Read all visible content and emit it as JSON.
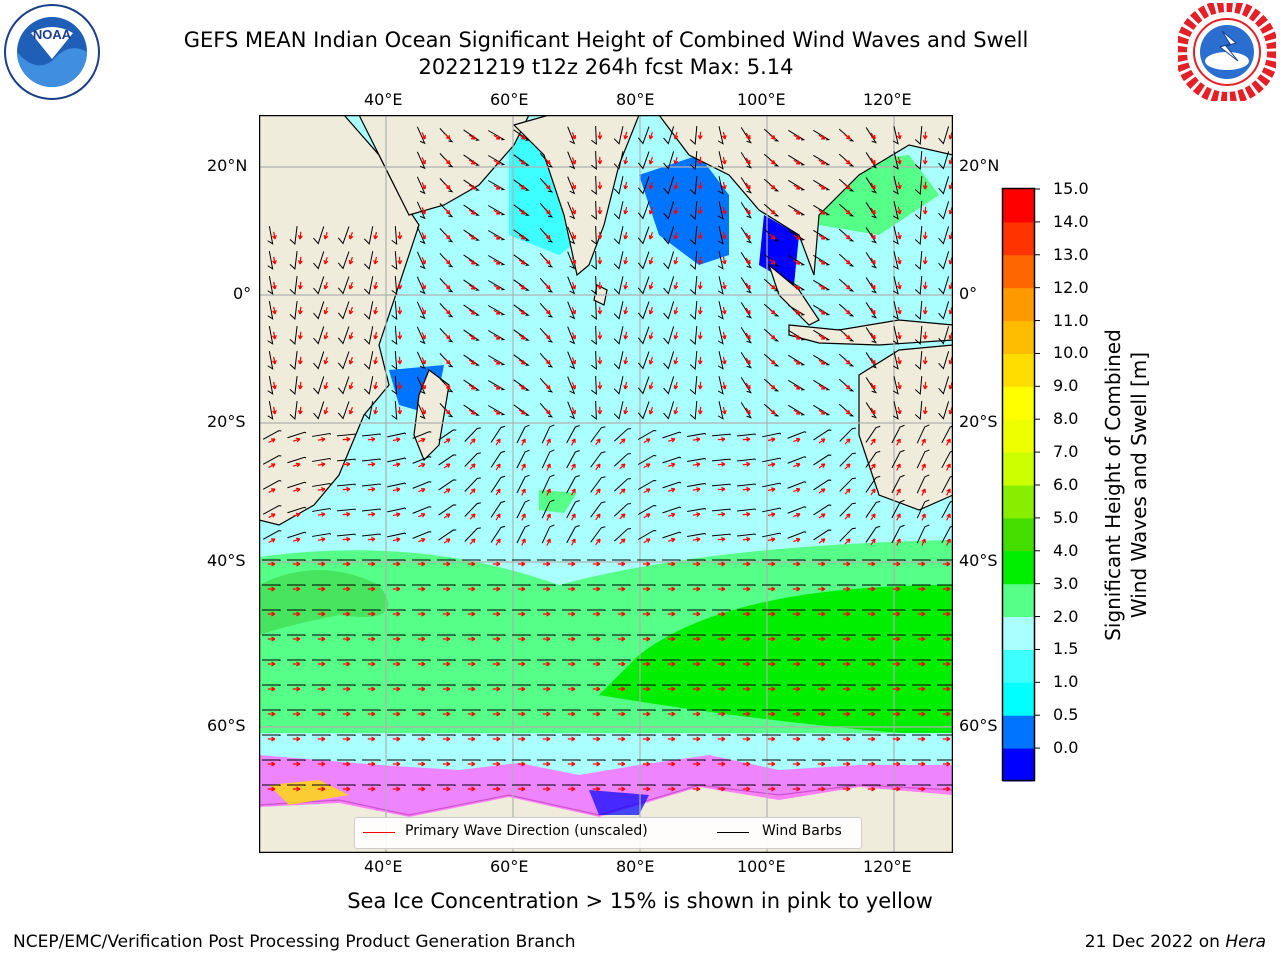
{
  "header": {
    "title_line1": "GEFS MEAN Indian Ocean Significant Height of Combined Wind Waves and Swell",
    "title_line2": "20221219 t12z 264h fcst   Max: 5.14"
  },
  "logos": {
    "noaa": {
      "text": "NOAA",
      "ring_text": "NATIONAL OCEANIC AND ATMOSPHERIC ADMINISTRATION · U.S. DEPARTMENT OF COMMERCE"
    },
    "nws": {
      "ring_text": "NATIONAL WEATHER SERVICE"
    }
  },
  "map": {
    "lon_labels_top": [
      "40°E",
      "60°E",
      "80°E",
      "100°E",
      "120°E"
    ],
    "lon_labels_bottom": [
      "40°E",
      "60°E",
      "80°E",
      "100°E",
      "120°E"
    ],
    "lat_labels_left": [
      "20°N",
      "0°",
      "20°S",
      "40°S",
      "60°S"
    ],
    "lat_labels_right": [
      "20°N",
      "0°",
      "20°S",
      "40°S",
      "60°S"
    ],
    "colors": {
      "land": "#efecdc",
      "grid": "#b0b0b0",
      "wave_arrow": "#ff0000",
      "wind_barb": "#000000"
    }
  },
  "colorbar": {
    "ticks": [
      "15.0",
      "14.0",
      "13.0",
      "12.0",
      "11.0",
      "10.0",
      "9.0",
      "8.0",
      "7.0",
      "6.0",
      "5.0",
      "4.0",
      "3.0",
      "2.0",
      "1.5",
      "1.0",
      "0.5",
      "0.0"
    ],
    "colors_bottom_to_top": [
      "#0000ff",
      "#0073ff",
      "#00ffff",
      "#3dffff",
      "#aaffff",
      "#55ff88",
      "#00ee00",
      "#44dd00",
      "#88ee00",
      "#ccff00",
      "#eeff00",
      "#ffff00",
      "#ffdd00",
      "#ffbb00",
      "#ff9900",
      "#ff6600",
      "#ff3300",
      "#ff0000"
    ],
    "label_line1": "Significant Height of Combined",
    "label_line2": "Wind Waves and Swell [m]"
  },
  "legend": {
    "wave_label": "Primary Wave Direction (unscaled)",
    "wind_label": "Wind Barbs"
  },
  "note": "Sea Ice Concentration > 15% is shown in pink to yellow",
  "footer": {
    "left": "NCEP/EMC/Verification Post Processing Product Generation Branch",
    "date": "21 Dec 2022 on ",
    "machine": "Hera"
  }
}
